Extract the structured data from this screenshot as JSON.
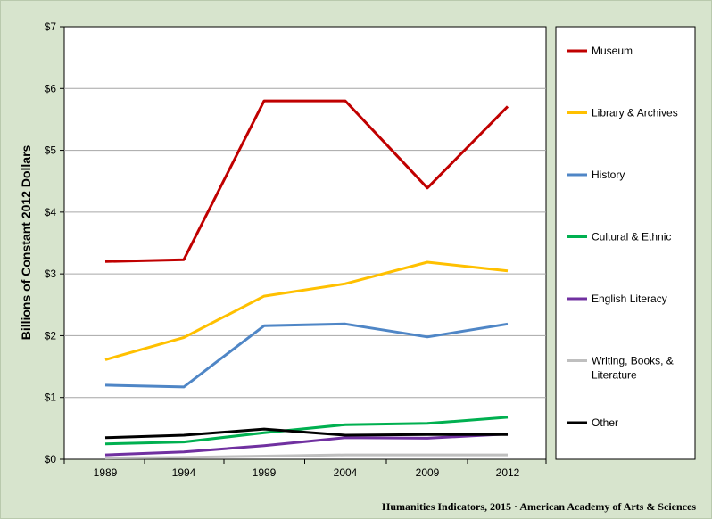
{
  "chart_data": {
    "type": "line",
    "title": "",
    "xlabel": "",
    "ylabel": "Billions of Constant 2012 Dollars",
    "x": [
      1989,
      1994,
      1999,
      2004,
      2009,
      2012
    ],
    "x_tick_labels": [
      "1989",
      "1994",
      "1999",
      "2004",
      "2009",
      "2012"
    ],
    "ylim": [
      0,
      7
    ],
    "y_ticks": [
      0,
      1,
      2,
      3,
      4,
      5,
      6,
      7
    ],
    "y_tick_labels": [
      "$0",
      "$1",
      "$2",
      "$3",
      "$4",
      "$5",
      "$6",
      "$7"
    ],
    "grid": "horizontal",
    "legend_position": "right",
    "series": [
      {
        "name": "Museum",
        "color": "#c00000",
        "values": [
          3.2,
          3.23,
          5.8,
          5.8,
          4.39,
          5.71
        ]
      },
      {
        "name": "Library & Archives",
        "color": "#ffc000",
        "values": [
          1.61,
          1.97,
          2.64,
          2.84,
          3.19,
          3.05
        ]
      },
      {
        "name": "History",
        "color": "#4f86c6",
        "values": [
          1.2,
          1.17,
          2.16,
          2.19,
          1.98,
          2.19
        ]
      },
      {
        "name": "Cultural & Ethnic",
        "color": "#00b050",
        "values": [
          0.25,
          0.28,
          0.43,
          0.56,
          0.58,
          0.68
        ]
      },
      {
        "name": "English Literacy",
        "color": "#7030a0",
        "values": [
          0.07,
          0.12,
          0.22,
          0.35,
          0.34,
          0.41
        ]
      },
      {
        "name": "Writing, Books, & Literature",
        "color": "#bfbfbf",
        "values": [
          0.02,
          0.03,
          0.05,
          0.07,
          0.07,
          0.07
        ]
      },
      {
        "name": "Other",
        "color": "#000000",
        "values": [
          0.35,
          0.39,
          0.49,
          0.39,
          0.4,
          0.4
        ]
      }
    ]
  },
  "credit": "Humanities  Indicators, 2015 · American Academy of Arts & Sciences"
}
